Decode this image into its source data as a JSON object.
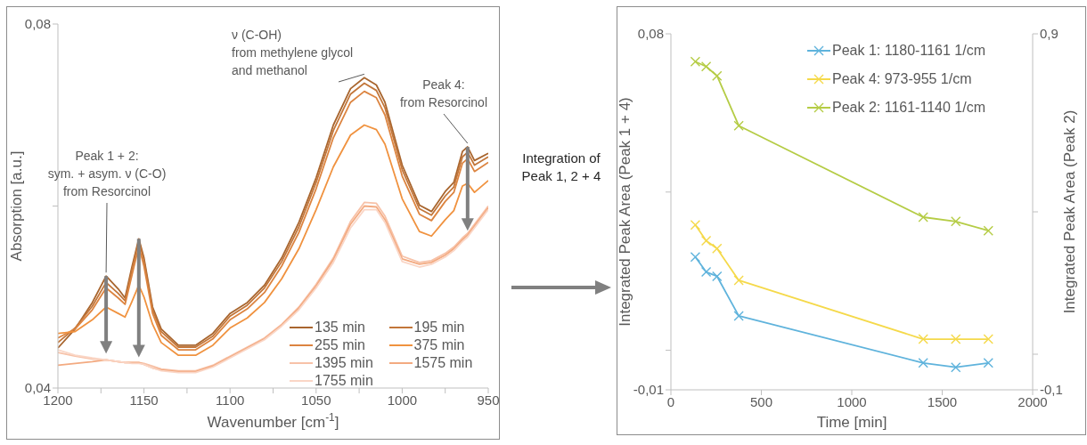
{
  "chart_data": [
    {
      "type": "line",
      "xlabel": "Wavenumber [cm$^{-1}$]",
      "ylabel": "Absorption [a.u.]",
      "legend": "bottom right",
      "xlim": [
        1200,
        950
      ],
      "xticks": [
        1200,
        {
          "value": 1175,
          "label": null
        },
        1150,
        {
          "value": 1125,
          "label": null
        },
        1100,
        {
          "value": 1075,
          "label": null
        },
        1050,
        {
          "value": 1025,
          "label": null
        },
        1000,
        {
          "value": 975,
          "label": null
        },
        950
      ],
      "ylim": [
        0.04,
        0.08
      ],
      "yticks": [
        {
          "value": 0.04,
          "label": "0,04"
        },
        {
          "value": 0.06,
          "label": null
        },
        {
          "value": 0.08,
          "label": "0,08"
        }
      ],
      "x": [
        1200,
        1190,
        1180,
        1172,
        1165,
        1161,
        1157,
        1153,
        1150,
        1145,
        1140,
        1130,
        1120,
        1110,
        1100,
        1090,
        1080,
        1070,
        1060,
        1050,
        1040,
        1030,
        1022,
        1015,
        1010,
        1000,
        990,
        983,
        975,
        970,
        965,
        962,
        958,
        950
      ],
      "series": [
        {
          "name": "135 min",
          "color": "#a8652e",
          "values": [
            0.0444,
            0.0465,
            0.0494,
            0.0523,
            0.0509,
            0.0499,
            0.0533,
            0.0564,
            0.0543,
            0.0489,
            0.0465,
            0.0447,
            0.0447,
            0.046,
            0.0482,
            0.0494,
            0.0513,
            0.0543,
            0.0582,
            0.0631,
            0.0689,
            0.0729,
            0.0741,
            0.0733,
            0.0714,
            0.0645,
            0.0601,
            0.0594,
            0.0616,
            0.0626,
            0.066,
            0.0665,
            0.065,
            0.0658
          ]
        },
        {
          "name": "195 min",
          "color": "#c2763a",
          "values": [
            0.045,
            0.0466,
            0.049,
            0.0516,
            0.0504,
            0.0496,
            0.053,
            0.0562,
            0.054,
            0.0486,
            0.0462,
            0.0445,
            0.0445,
            0.0457,
            0.0479,
            0.0491,
            0.051,
            0.0539,
            0.0577,
            0.0626,
            0.0683,
            0.0723,
            0.0735,
            0.0727,
            0.0708,
            0.064,
            0.0597,
            0.059,
            0.0611,
            0.0621,
            0.0654,
            0.0659,
            0.0645,
            0.0654
          ]
        },
        {
          "name": "255 min",
          "color": "#dc8440",
          "values": [
            0.0455,
            0.0465,
            0.0486,
            0.051,
            0.0499,
            0.0492,
            0.0524,
            0.0556,
            0.0534,
            0.0482,
            0.0458,
            0.0442,
            0.0442,
            0.0454,
            0.0475,
            0.0487,
            0.0505,
            0.0534,
            0.0571,
            0.0619,
            0.0675,
            0.0714,
            0.0726,
            0.0719,
            0.07,
            0.0633,
            0.0591,
            0.0584,
            0.0605,
            0.0615,
            0.0647,
            0.0652,
            0.0638,
            0.0648
          ]
        },
        {
          "name": "375 min",
          "color": "#f0923f",
          "values": [
            0.046,
            0.0462,
            0.0475,
            0.0489,
            0.0482,
            0.0478,
            0.0495,
            0.0513,
            0.05,
            0.047,
            0.045,
            0.0436,
            0.0436,
            0.0447,
            0.0466,
            0.0477,
            0.0494,
            0.052,
            0.0553,
            0.0596,
            0.0643,
            0.0678,
            0.0689,
            0.0684,
            0.0668,
            0.0608,
            0.0572,
            0.0567,
            0.0585,
            0.0595,
            0.0622,
            0.0625,
            0.0615,
            0.0628
          ]
        },
        {
          "name": "1395 min",
          "color": "#f7c2a8",
          "values": [
            0.0439,
            0.0435,
            0.0432,
            0.0431,
            0.0429,
            0.0428,
            0.0428,
            0.0428,
            0.0427,
            0.0424,
            0.0421,
            0.0419,
            0.0419,
            0.0425,
            0.0435,
            0.0445,
            0.0455,
            0.047,
            0.0489,
            0.0514,
            0.0543,
            0.0583,
            0.0604,
            0.0603,
            0.0589,
            0.0545,
            0.0538,
            0.054,
            0.0548,
            0.0555,
            0.0565,
            0.057,
            0.058,
            0.06
          ]
        },
        {
          "name": "1575 min",
          "color": "#f3aa80",
          "values": [
            0.0425,
            0.0427,
            0.0429,
            0.0431,
            0.0429,
            0.0428,
            0.0428,
            0.0428,
            0.0426,
            0.0422,
            0.042,
            0.0418,
            0.0418,
            0.0424,
            0.0434,
            0.0444,
            0.0454,
            0.0469,
            0.0488,
            0.0512,
            0.0541,
            0.058,
            0.06,
            0.0599,
            0.0585,
            0.0542,
            0.0536,
            0.0538,
            0.0546,
            0.0553,
            0.0563,
            0.0568,
            0.0578,
            0.0598
          ]
        },
        {
          "name": "1755 min",
          "color": "#fad6c6",
          "values": [
            0.0442,
            0.0436,
            0.0433,
            0.0431,
            0.0429,
            0.0428,
            0.0427,
            0.0427,
            0.0426,
            0.0422,
            0.0419,
            0.0417,
            0.0417,
            0.0423,
            0.0433,
            0.0443,
            0.0453,
            0.0468,
            0.0486,
            0.051,
            0.0538,
            0.0576,
            0.0596,
            0.0596,
            0.0582,
            0.0539,
            0.0533,
            0.0536,
            0.0544,
            0.0551,
            0.0561,
            0.0566,
            0.0576,
            0.0596
          ]
        }
      ],
      "annotations": [
        {
          "text": "Peak 1 + 2:\nsym. + asym. ν (C-O)\nfrom Resorcinol",
          "x": 1172,
          "y": 0.0523
        },
        {
          "text": "ν (C-OH)\nfrom methylene glycol\nand methanol",
          "x": 1022,
          "y": 0.0741
        },
        {
          "text": "Peak 4:\nfrom Resorcinol",
          "x": 962,
          "y": 0.0665
        }
      ]
    },
    {
      "type": "line",
      "xlabel": "Time [min]",
      "ylabel": "Integrated Peak Area (Peak 1 + 4)",
      "y2label": "Integrated Peak Area (Peak 2)",
      "legend": "top right",
      "marker": "cross",
      "xlim": [
        0,
        2000
      ],
      "xticks": [
        0,
        500,
        1000,
        1500,
        2000
      ],
      "ylim": [
        -0.01,
        0.08
      ],
      "yticks": [
        {
          "value": -0.01,
          "label": "-0,01"
        },
        {
          "value": 0,
          "label": null
        },
        {
          "value": 0.04,
          "label": null
        },
        {
          "value": 0.08,
          "label": "0,08"
        }
      ],
      "y2lim": [
        -0.1,
        0.9
      ],
      "y2ticks": [
        {
          "value": -0.1,
          "label": "-0,1"
        },
        {
          "value": 0,
          "label": null
        },
        {
          "value": 0.4,
          "label": null
        },
        {
          "value": 0.9,
          "label": "0,9"
        }
      ],
      "x": [
        135,
        195,
        255,
        375,
        1395,
        1575,
        1755
      ],
      "series": [
        {
          "name": "Peak 1: 1180-1161 1/cm",
          "color": "#5fb3dc",
          "values": [
            0.0236,
            0.0198,
            0.0187,
            0.0087,
            -0.0032,
            -0.0043,
            -0.0032
          ]
        },
        {
          "name": "Peak 4: 973-955 1/cm",
          "color": "#f5d94a",
          "values": [
            0.0317,
            0.0277,
            0.0257,
            0.0177,
            0.0028,
            0.0028,
            0.0028
          ]
        },
        {
          "name": "Peak 2: 1161-1140 1/cm",
          "color": "#b5cc45",
          "axis": "y2",
          "values": [
            0.822,
            0.808,
            0.782,
            0.642,
            0.385,
            0.373,
            0.347
          ]
        }
      ],
      "annotations": [
        "Integration of Peak 1, 2 + 4"
      ]
    }
  ]
}
